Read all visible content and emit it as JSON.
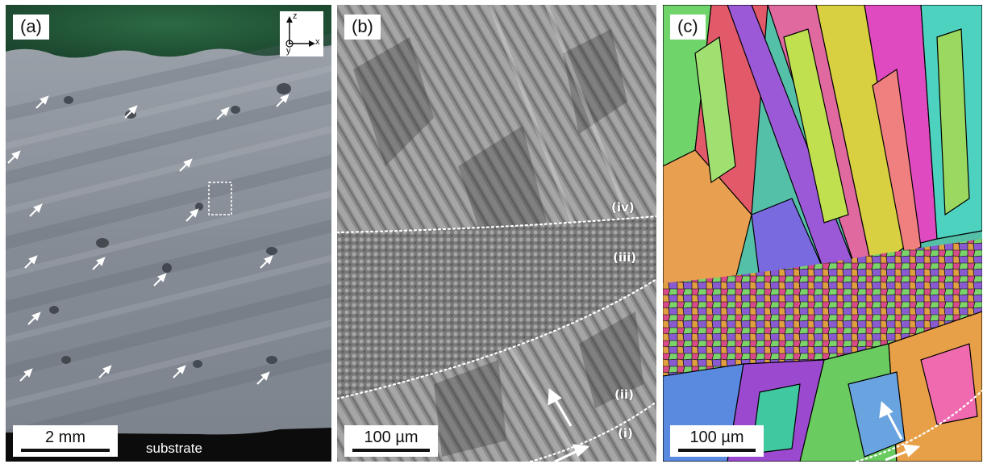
{
  "panels": {
    "a": {
      "label": "(a)",
      "scale_text": "2 mm",
      "substrate_text": "substrate",
      "axes": {
        "z": "z",
        "x": "x",
        "y": "y"
      }
    },
    "b": {
      "label": "(b)",
      "scale_text": "100 µm",
      "regions": {
        "i": "(i)",
        "ii": "(ii)",
        "iii": "(iii)",
        "iv": "(iv)"
      }
    },
    "c": {
      "label": "(c)",
      "scale_text": "100 µm"
    }
  },
  "colors": {
    "background_green": "#1f4f33",
    "optical_grey": "#8a9099",
    "substrate_black": "#0c0c0c"
  }
}
